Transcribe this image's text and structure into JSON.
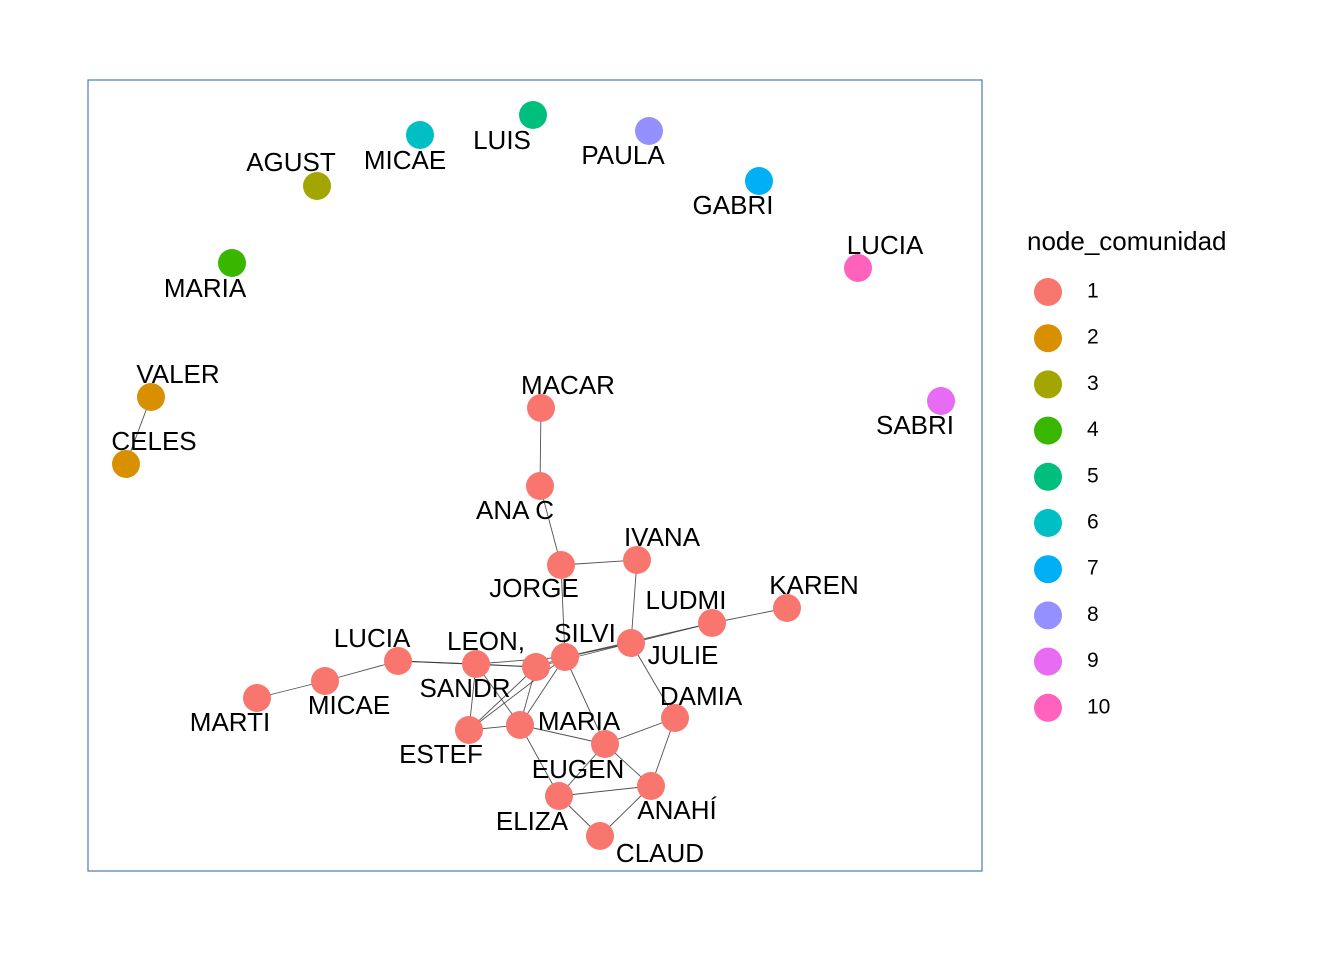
{
  "legend": {
    "title": "node_comunidad",
    "items": [
      {
        "label": "1",
        "color": "#F8766D"
      },
      {
        "label": "2",
        "color": "#D89000"
      },
      {
        "label": "3",
        "color": "#A3A500"
      },
      {
        "label": "4",
        "color": "#39B600"
      },
      {
        "label": "5",
        "color": "#00BF7D"
      },
      {
        "label": "6",
        "color": "#00BFC4"
      },
      {
        "label": "7",
        "color": "#00B0F6"
      },
      {
        "label": "8",
        "color": "#9590FF"
      },
      {
        "label": "9",
        "color": "#E76BF3"
      },
      {
        "label": "10",
        "color": "#FF62BC"
      }
    ]
  },
  "nodes": [
    {
      "id": "agust",
      "label": "AGUST",
      "community": 3
    },
    {
      "id": "micae_top",
      "label": "MICAE",
      "community": 6
    },
    {
      "id": "luis",
      "label": "LUIS",
      "community": 5
    },
    {
      "id": "paula",
      "label": "PAULA",
      "community": 8
    },
    {
      "id": "gabri",
      "label": "GABRI",
      "community": 7
    },
    {
      "id": "lucia_top",
      "label": "LUCIA",
      "community": 10
    },
    {
      "id": "maria_top",
      "label": "MARIA",
      "community": 4
    },
    {
      "id": "valer",
      "label": "VALER",
      "community": 2
    },
    {
      "id": "celes",
      "label": "CELES",
      "community": 2
    },
    {
      "id": "sabri",
      "label": "SABRI",
      "community": 9
    },
    {
      "id": "macar",
      "label": "MACAR",
      "community": 1
    },
    {
      "id": "anac",
      "label": "ANA C",
      "community": 1
    },
    {
      "id": "jorge",
      "label": "JORGE",
      "community": 1
    },
    {
      "id": "ivana",
      "label": "IVANA",
      "community": 1
    },
    {
      "id": "karen",
      "label": "KAREN",
      "community": 1
    },
    {
      "id": "ludmi",
      "label": "LUDMI",
      "community": 1
    },
    {
      "id": "julie",
      "label": "JULIE",
      "community": 1
    },
    {
      "id": "silvi",
      "label": "SILVI",
      "community": 1
    },
    {
      "id": "leon",
      "label": "LEON,",
      "community": 1
    },
    {
      "id": "sandr",
      "label": "SANDR",
      "community": 1
    },
    {
      "id": "lucia",
      "label": "LUCIA",
      "community": 1
    },
    {
      "id": "micae",
      "label": "MICAE",
      "community": 1
    },
    {
      "id": "marti",
      "label": "MARTI",
      "community": 1
    },
    {
      "id": "estef",
      "label": "ESTEF",
      "community": 1
    },
    {
      "id": "maria",
      "label": "MARIA",
      "community": 1
    },
    {
      "id": "damia",
      "label": "DAMIA",
      "community": 1
    },
    {
      "id": "eugen",
      "label": "EUGEN",
      "community": 1
    },
    {
      "id": "anahi",
      "label": "ANAHÍ",
      "community": 1
    },
    {
      "id": "eliza",
      "label": "ELIZA",
      "community": 1
    },
    {
      "id": "claud",
      "label": "CLAUD",
      "community": 1
    }
  ],
  "edges": [
    [
      "valer",
      "celes"
    ],
    [
      "macar",
      "anac"
    ],
    [
      "anac",
      "jorge"
    ],
    [
      "jorge",
      "ivana"
    ],
    [
      "jorge",
      "silvi"
    ],
    [
      "ivana",
      "julie"
    ],
    [
      "karen",
      "ludmi"
    ],
    [
      "ludmi",
      "julie"
    ],
    [
      "ludmi",
      "silvi"
    ],
    [
      "julie",
      "silvi"
    ],
    [
      "julie",
      "sandr"
    ],
    [
      "julie",
      "damia"
    ],
    [
      "silvi",
      "sandr"
    ],
    [
      "silvi",
      "leon"
    ],
    [
      "silvi",
      "maria"
    ],
    [
      "silvi",
      "estef"
    ],
    [
      "silvi",
      "eugen"
    ],
    [
      "leon",
      "lucia"
    ],
    [
      "leon",
      "sandr"
    ],
    [
      "leon",
      "estef"
    ],
    [
      "leon",
      "maria"
    ],
    [
      "lucia",
      "micae"
    ],
    [
      "lucia",
      "sandr"
    ],
    [
      "micae",
      "marti"
    ],
    [
      "sandr",
      "maria"
    ],
    [
      "sandr",
      "estef"
    ],
    [
      "estef",
      "maria"
    ],
    [
      "maria",
      "eliza"
    ],
    [
      "maria",
      "eugen"
    ],
    [
      "damia",
      "eugen"
    ],
    [
      "damia",
      "anahi"
    ],
    [
      "eugen",
      "anahi"
    ],
    [
      "eugen",
      "eliza"
    ],
    [
      "eliza",
      "anahi"
    ],
    [
      "eliza",
      "claud"
    ],
    [
      "anahi",
      "claud"
    ]
  ]
}
